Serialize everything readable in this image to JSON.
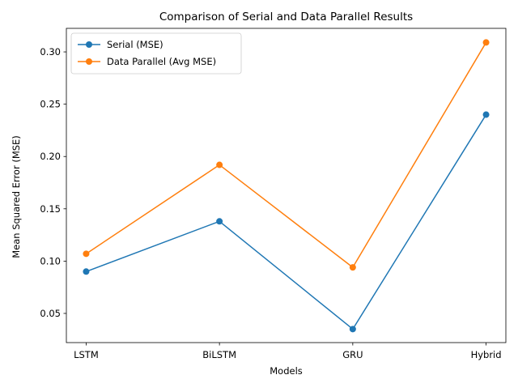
{
  "chart_data": {
    "type": "line",
    "title": "Comparison of Serial and Data Parallel Results",
    "xlabel": "Models",
    "ylabel": "Mean Squared Error (MSE)",
    "categories": [
      "LSTM",
      "BiLSTM",
      "GRU",
      "Hybrid"
    ],
    "ylim": [
      0.0221,
      0.3225
    ],
    "yticks": [
      0.05,
      0.1,
      0.15,
      0.2,
      0.25,
      0.3
    ],
    "ytick_labels": [
      "0.05",
      "0.10",
      "0.15",
      "0.20",
      "0.25",
      "0.30"
    ],
    "grid": false,
    "legend": "top-left",
    "series": [
      {
        "name": "Serial (MSE)",
        "color": "#1f77b4",
        "values": [
          0.09,
          0.138,
          0.035,
          0.24
        ]
      },
      {
        "name": "Data Parallel (Avg MSE)",
        "color": "#ff7f0e",
        "values": [
          0.107,
          0.192,
          0.094,
          0.309
        ]
      }
    ]
  }
}
